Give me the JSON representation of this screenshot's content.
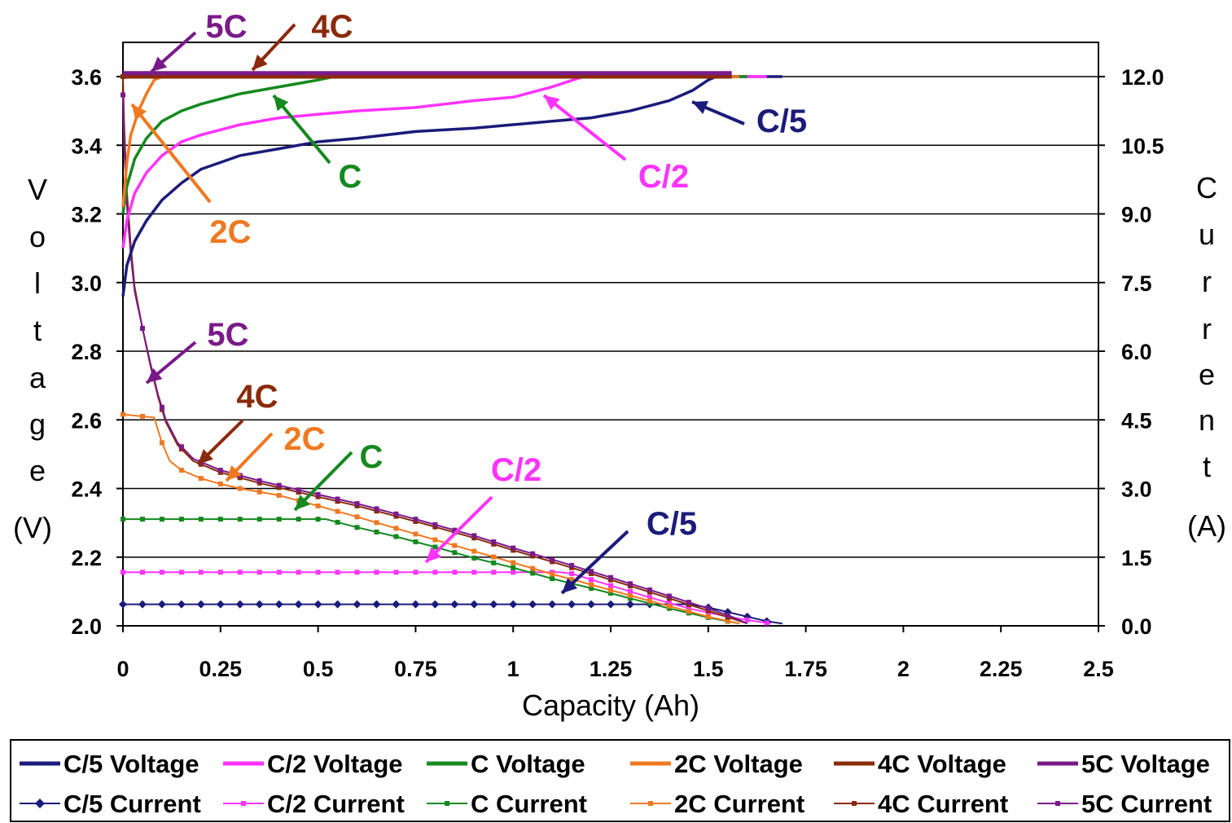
{
  "colors": {
    "c5": "#1b1b7a",
    "c2": "#ff33ff",
    "c1": "#14891e",
    "c2c": "#f07820",
    "c4": "#8a2a0a",
    "c5c": "#7a1a8a",
    "grid": "#000000"
  },
  "chart_data": {
    "type": "line",
    "xlabel": "Capacity (Ah)",
    "ylabel_left": [
      "V",
      "o",
      "l",
      "t",
      "a",
      "g",
      "e",
      "(V)"
    ],
    "ylabel_right": [
      "C",
      "u",
      "r",
      "r",
      "e",
      "n",
      "t",
      "(A)"
    ],
    "xlim": [
      0,
      2.5
    ],
    "ylim_left": [
      2.0,
      3.6
    ],
    "ylim_right": [
      0,
      12
    ],
    "x_ticks": [
      "0",
      "0.25",
      "0.5",
      "0.75",
      "1",
      "1.25",
      "1.5",
      "1.75",
      "2",
      "2.25",
      "2.5"
    ],
    "y_ticks_left": [
      "2.0",
      "2.2",
      "2.4",
      "2.6",
      "2.8",
      "3.0",
      "3.2",
      "3.4",
      "3.6"
    ],
    "y_ticks_right": [
      "0.0",
      "1.5",
      "3.0",
      "4.5",
      "6.0",
      "7.5",
      "9.0",
      "10.5",
      "12.0"
    ],
    "grid": true,
    "legend_position": "bottom",
    "voltage_series": [
      {
        "name": "C/5 Voltage",
        "color": "#1b1b7a",
        "points": [
          [
            0,
            2.96
          ],
          [
            0.01,
            3.05
          ],
          [
            0.03,
            3.12
          ],
          [
            0.06,
            3.18
          ],
          [
            0.1,
            3.24
          ],
          [
            0.15,
            3.29
          ],
          [
            0.2,
            3.33
          ],
          [
            0.3,
            3.37
          ],
          [
            0.4,
            3.39
          ],
          [
            0.5,
            3.41
          ],
          [
            0.6,
            3.42
          ],
          [
            0.75,
            3.44
          ],
          [
            0.9,
            3.45
          ],
          [
            1.0,
            3.46
          ],
          [
            1.1,
            3.47
          ],
          [
            1.2,
            3.48
          ],
          [
            1.3,
            3.5
          ],
          [
            1.4,
            3.53
          ],
          [
            1.46,
            3.56
          ],
          [
            1.5,
            3.59
          ],
          [
            1.52,
            3.6
          ],
          [
            1.69,
            3.6
          ]
        ]
      },
      {
        "name": "C/2 Voltage",
        "color": "#ff33ff",
        "points": [
          [
            0,
            3.1
          ],
          [
            0.01,
            3.18
          ],
          [
            0.03,
            3.26
          ],
          [
            0.06,
            3.32
          ],
          [
            0.1,
            3.37
          ],
          [
            0.15,
            3.41
          ],
          [
            0.2,
            3.43
          ],
          [
            0.3,
            3.46
          ],
          [
            0.4,
            3.48
          ],
          [
            0.5,
            3.49
          ],
          [
            0.6,
            3.5
          ],
          [
            0.75,
            3.51
          ],
          [
            0.9,
            3.53
          ],
          [
            1.0,
            3.54
          ],
          [
            1.1,
            3.57
          ],
          [
            1.18,
            3.6
          ],
          [
            1.65,
            3.6
          ]
        ]
      },
      {
        "name": "C Voltage",
        "color": "#14891e",
        "points": [
          [
            0,
            3.2
          ],
          [
            0.01,
            3.28
          ],
          [
            0.03,
            3.36
          ],
          [
            0.06,
            3.42
          ],
          [
            0.1,
            3.47
          ],
          [
            0.15,
            3.5
          ],
          [
            0.2,
            3.52
          ],
          [
            0.3,
            3.55
          ],
          [
            0.4,
            3.57
          ],
          [
            0.5,
            3.59
          ],
          [
            0.54,
            3.6
          ],
          [
            1.6,
            3.6
          ]
        ]
      },
      {
        "name": "2C Voltage",
        "color": "#f07820",
        "points": [
          [
            0,
            3.22
          ],
          [
            0.01,
            3.35
          ],
          [
            0.02,
            3.43
          ],
          [
            0.04,
            3.5
          ],
          [
            0.06,
            3.55
          ],
          [
            0.08,
            3.59
          ],
          [
            0.1,
            3.6
          ],
          [
            1.58,
            3.6
          ]
        ]
      },
      {
        "name": "4C Voltage",
        "color": "#8a2a0a",
        "points": [
          [
            0,
            3.6
          ],
          [
            1.56,
            3.6
          ]
        ]
      },
      {
        "name": "5C Voltage",
        "color": "#7a1a8a",
        "points": [
          [
            0,
            3.61
          ],
          [
            1.56,
            3.61
          ]
        ]
      }
    ],
    "current_series": [
      {
        "name": "C/5 Current",
        "color": "#1b1b7a",
        "marker": "diamond",
        "points": [
          [
            0,
            0.47
          ],
          [
            1.45,
            0.47
          ],
          [
            1.5,
            0.4
          ],
          [
            1.55,
            0.3
          ],
          [
            1.6,
            0.2
          ],
          [
            1.65,
            0.1
          ],
          [
            1.69,
            0.05
          ]
        ]
      },
      {
        "name": "C/2 Current",
        "color": "#ff33ff",
        "marker": "square",
        "points": [
          [
            0,
            1.17
          ],
          [
            1.12,
            1.17
          ],
          [
            1.15,
            1.14
          ],
          [
            1.25,
            0.88
          ],
          [
            1.35,
            0.62
          ],
          [
            1.45,
            0.38
          ],
          [
            1.55,
            0.2
          ],
          [
            1.62,
            0.1
          ],
          [
            1.66,
            0.05
          ]
        ]
      },
      {
        "name": "C Current",
        "color": "#14891e",
        "marker": "square",
        "points": [
          [
            0,
            2.33
          ],
          [
            0.52,
            2.33
          ],
          [
            0.6,
            2.15
          ],
          [
            0.7,
            1.95
          ],
          [
            0.8,
            1.72
          ],
          [
            0.9,
            1.48
          ],
          [
            1.0,
            1.27
          ],
          [
            1.1,
            1.03
          ],
          [
            1.2,
            0.82
          ],
          [
            1.3,
            0.6
          ],
          [
            1.4,
            0.38
          ],
          [
            1.5,
            0.18
          ],
          [
            1.58,
            0.05
          ]
        ]
      },
      {
        "name": "2C Current",
        "color": "#f07820",
        "marker": "square",
        "points": [
          [
            0,
            4.62
          ],
          [
            0.08,
            4.55
          ],
          [
            0.1,
            4.0
          ],
          [
            0.12,
            3.6
          ],
          [
            0.15,
            3.4
          ],
          [
            0.2,
            3.22
          ],
          [
            0.25,
            3.1
          ],
          [
            0.3,
            3.0
          ],
          [
            0.4,
            2.85
          ],
          [
            0.5,
            2.62
          ],
          [
            0.6,
            2.38
          ],
          [
            0.7,
            2.13
          ],
          [
            0.8,
            1.88
          ],
          [
            0.9,
            1.63
          ],
          [
            1.0,
            1.38
          ],
          [
            1.1,
            1.13
          ],
          [
            1.2,
            0.9
          ],
          [
            1.3,
            0.66
          ],
          [
            1.4,
            0.43
          ],
          [
            1.5,
            0.2
          ],
          [
            1.58,
            0.05
          ]
        ]
      },
      {
        "name": "4C Current",
        "color": "#8a2a0a",
        "marker": "square",
        "points": [
          [
            0,
            12.0
          ],
          [
            0.003,
            11.0
          ],
          [
            0.01,
            9.5
          ],
          [
            0.02,
            8.3
          ],
          [
            0.03,
            7.4
          ],
          [
            0.05,
            6.5
          ],
          [
            0.07,
            5.7
          ],
          [
            0.09,
            5.0
          ],
          [
            0.11,
            4.45
          ],
          [
            0.14,
            3.95
          ],
          [
            0.18,
            3.6
          ],
          [
            0.25,
            3.35
          ],
          [
            0.35,
            3.12
          ],
          [
            0.45,
            2.92
          ],
          [
            0.6,
            2.62
          ],
          [
            0.75,
            2.28
          ],
          [
            0.9,
            1.92
          ],
          [
            1.0,
            1.65
          ],
          [
            1.1,
            1.4
          ],
          [
            1.2,
            1.14
          ],
          [
            1.3,
            0.87
          ],
          [
            1.4,
            0.6
          ],
          [
            1.5,
            0.33
          ],
          [
            1.56,
            0.16
          ],
          [
            1.6,
            0.05
          ]
        ]
      },
      {
        "name": "5C Current",
        "color": "#7a1a8a",
        "marker": "square",
        "points": [
          [
            0,
            11.6
          ],
          [
            0.003,
            10.5
          ],
          [
            0.01,
            9.2
          ],
          [
            0.02,
            8.1
          ],
          [
            0.03,
            7.3
          ],
          [
            0.05,
            6.5
          ],
          [
            0.07,
            5.75
          ],
          [
            0.09,
            5.05
          ],
          [
            0.11,
            4.5
          ],
          [
            0.14,
            4.0
          ],
          [
            0.18,
            3.65
          ],
          [
            0.25,
            3.4
          ],
          [
            0.35,
            3.17
          ],
          [
            0.45,
            2.97
          ],
          [
            0.6,
            2.67
          ],
          [
            0.75,
            2.33
          ],
          [
            0.9,
            1.97
          ],
          [
            1.0,
            1.7
          ],
          [
            1.1,
            1.45
          ],
          [
            1.2,
            1.19
          ],
          [
            1.3,
            0.92
          ],
          [
            1.4,
            0.65
          ],
          [
            1.5,
            0.38
          ],
          [
            1.56,
            0.2
          ],
          [
            1.6,
            0.05
          ]
        ]
      }
    ],
    "annotations_voltage": [
      {
        "label": "5C",
        "color": "#7a1a8a"
      },
      {
        "label": "4C",
        "color": "#8a2a0a"
      },
      {
        "label": "C/5",
        "color": "#1b1b7a"
      },
      {
        "label": "C",
        "color": "#14891e"
      },
      {
        "label": "C/2",
        "color": "#ff33ff"
      },
      {
        "label": "2C",
        "color": "#f07820"
      }
    ],
    "annotations_current": [
      {
        "label": "5C",
        "color": "#7a1a8a"
      },
      {
        "label": "4C",
        "color": "#8a2a0a"
      },
      {
        "label": "2C",
        "color": "#f07820"
      },
      {
        "label": "C",
        "color": "#14891e"
      },
      {
        "label": "C/2",
        "color": "#ff33ff"
      },
      {
        "label": "C/5",
        "color": "#1b1b7a"
      }
    ],
    "legend": {
      "voltage": [
        "C/5 Voltage",
        "C/2 Voltage",
        "C Voltage",
        "2C Voltage",
        "4C Voltage",
        "5C Voltage"
      ],
      "current": [
        "C/5 Current",
        "C/2 Current",
        "C Current",
        "2C Current",
        "4C Current",
        "5C Current"
      ]
    }
  }
}
